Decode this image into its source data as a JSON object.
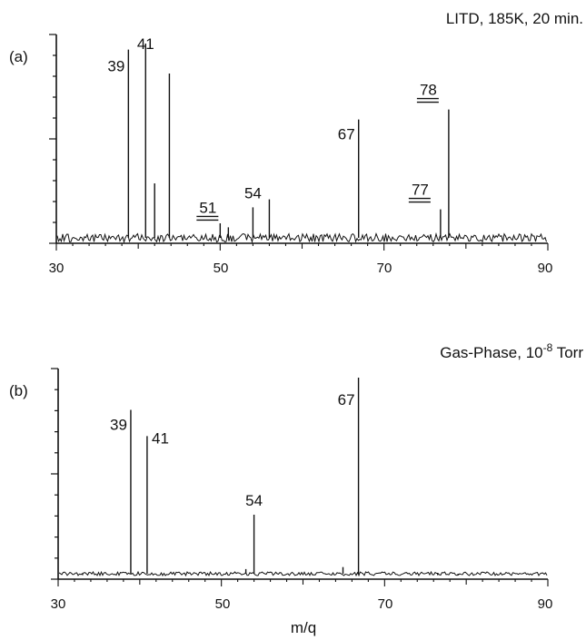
{
  "chart_data": [
    {
      "type": "line",
      "panel_label": "(a)",
      "title": "LITD, 185K, 20 min.",
      "xlabel": "",
      "ylabel": "",
      "xlim": [
        30,
        90
      ],
      "ylim": [
        0,
        100
      ],
      "xticks": [
        "30",
        "50",
        "70",
        "90"
      ],
      "grid": false,
      "peaks": [
        {
          "x": 38.8,
          "y": 97,
          "label": "39",
          "underlined": false
        },
        {
          "x": 40.9,
          "y": 100,
          "label": "41",
          "underlined": false
        },
        {
          "x": 42.0,
          "y": 30,
          "label": "",
          "underlined": false
        },
        {
          "x": 43.8,
          "y": 85,
          "label": "",
          "underlined": false
        },
        {
          "x": 50.0,
          "y": 10,
          "label": "",
          "underlined": false
        },
        {
          "x": 51.0,
          "y": 8,
          "label": "51",
          "underlined": true
        },
        {
          "x": 54.0,
          "y": 18,
          "label": "54",
          "underlined": false
        },
        {
          "x": 56.0,
          "y": 22,
          "label": "",
          "underlined": false
        },
        {
          "x": 66.9,
          "y": 62,
          "label": "67",
          "underlined": false
        },
        {
          "x": 76.9,
          "y": 17,
          "label": "77",
          "underlined": true
        },
        {
          "x": 77.9,
          "y": 67,
          "label": "78",
          "underlined": true
        }
      ]
    },
    {
      "type": "line",
      "panel_label": "(b)",
      "title": "Gas-Phase, 10",
      "title_superscript": "-8",
      "title_suffix": " Torr",
      "xlabel": "m/q",
      "ylabel": "",
      "xlim": [
        30,
        90
      ],
      "ylim": [
        0,
        100
      ],
      "xticks": [
        "30",
        "50",
        "70",
        "90"
      ],
      "grid": false,
      "peaks": [
        {
          "x": 33.0,
          "y": 2,
          "label": "",
          "underlined": false
        },
        {
          "x": 38.9,
          "y": 84,
          "label": "39",
          "underlined": false
        },
        {
          "x": 40.9,
          "y": 71,
          "label": "41",
          "underlined": false
        },
        {
          "x": 53.0,
          "y": 5,
          "label": "",
          "underlined": false
        },
        {
          "x": 54.0,
          "y": 32,
          "label": "54",
          "underlined": false
        },
        {
          "x": 64.9,
          "y": 6,
          "label": "",
          "underlined": false
        },
        {
          "x": 66.8,
          "y": 100,
          "label": "67",
          "underlined": false
        },
        {
          "x": 76.5,
          "y": 2,
          "label": "",
          "underlined": false
        },
        {
          "x": 79.0,
          "y": 2,
          "label": "",
          "underlined": false
        }
      ]
    }
  ]
}
